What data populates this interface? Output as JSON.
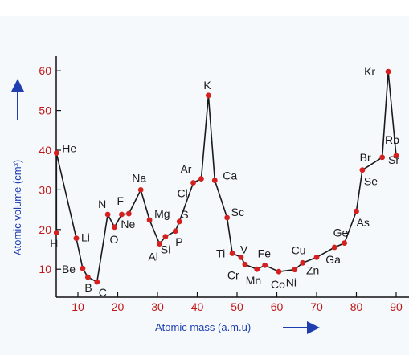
{
  "chart_data": {
    "type": "line",
    "xlabel": "Atomic mass (a.m.u)",
    "ylabel": "Atomic volume (cm³)",
    "x_ticks": [
      "10",
      "20",
      "30",
      "40",
      "50",
      "60",
      "70",
      "80",
      "90"
    ],
    "y_ticks": [
      "10",
      "20",
      "30",
      "40",
      "50",
      "60"
    ],
    "xlim": [
      2,
      90
    ],
    "ylim": [
      4,
      66
    ],
    "colors": {
      "line": "#1a1a1a",
      "points": "#d62020",
      "ticks": "#c01818",
      "axis_title": "#1f3fb0",
      "axis_arrow": "#1f3fb0"
    },
    "points": [
      {
        "label": "H",
        "x": 4.6,
        "y": 19.2
      },
      {
        "label": "He",
        "x": 4.6,
        "y": 39.3
      },
      {
        "label": "Li",
        "x": 9.6,
        "y": 17.8
      },
      {
        "label": "Be",
        "x": 11.2,
        "y": 10.2
      },
      {
        "label": "B",
        "x": 12.5,
        "y": 8.0
      },
      {
        "label": "C",
        "x": 14.8,
        "y": 6.8
      },
      {
        "label": "N",
        "x": 17.5,
        "y": 23.8
      },
      {
        "label": "O",
        "x": 19.2,
        "y": 20.6
      },
      {
        "label": "F",
        "x": 21.0,
        "y": 23.8
      },
      {
        "label": "Ne",
        "x": 22.8,
        "y": 24.0
      },
      {
        "label": "Na",
        "x": 25.8,
        "y": 30.0
      },
      {
        "label": "Mg",
        "x": 28.0,
        "y": 22.4
      },
      {
        "label": "Al",
        "x": 30.5,
        "y": 16.4
      },
      {
        "label": "Si",
        "x": 32.0,
        "y": 18.2
      },
      {
        "label": "P",
        "x": 34.5,
        "y": 19.6
      },
      {
        "label": "S",
        "x": 35.5,
        "y": 22.0
      },
      {
        "label": "Cl",
        "x": 39.0,
        "y": 31.8
      },
      {
        "label": "Ar",
        "x": 41.0,
        "y": 32.8
      },
      {
        "label": "K",
        "x": 42.8,
        "y": 53.8
      },
      {
        "label": "Ca",
        "x": 44.4,
        "y": 32.4
      },
      {
        "label": "Sc",
        "x": 47.5,
        "y": 23.0
      },
      {
        "label": "Ti",
        "x": 48.8,
        "y": 14.0
      },
      {
        "label": "V",
        "x": 51.0,
        "y": 13.0
      },
      {
        "label": "Cr",
        "x": 52.0,
        "y": 11.2
      },
      {
        "label": "Mn",
        "x": 55.0,
        "y": 10.0
      },
      {
        "label": "Fe",
        "x": 57.0,
        "y": 11.0
      },
      {
        "label": "Co",
        "x": 60.5,
        "y": 9.4
      },
      {
        "label": "Ni",
        "x": 64.5,
        "y": 9.9
      },
      {
        "label": "Cu",
        "x": 66.5,
        "y": 11.6
      },
      {
        "label": "Zn",
        "x": 70.0,
        "y": 13.0
      },
      {
        "label": "Ga",
        "x": 74.5,
        "y": 15.5
      },
      {
        "label": "Ge",
        "x": 77.0,
        "y": 16.6
      },
      {
        "label": "As",
        "x": 80.0,
        "y": 24.6
      },
      {
        "label": "Se",
        "x": 81.5,
        "y": 35.0
      },
      {
        "label": "Br",
        "x": 86.5,
        "y": 38.2
      },
      {
        "label": "Kr",
        "x": 88.0,
        "y": 59.8
      },
      {
        "label": "Rb",
        "x": 90.0,
        "y": 38.6
      },
      {
        "label": "Sr",
        "x": 90.0,
        "y": 38.6
      }
    ]
  }
}
